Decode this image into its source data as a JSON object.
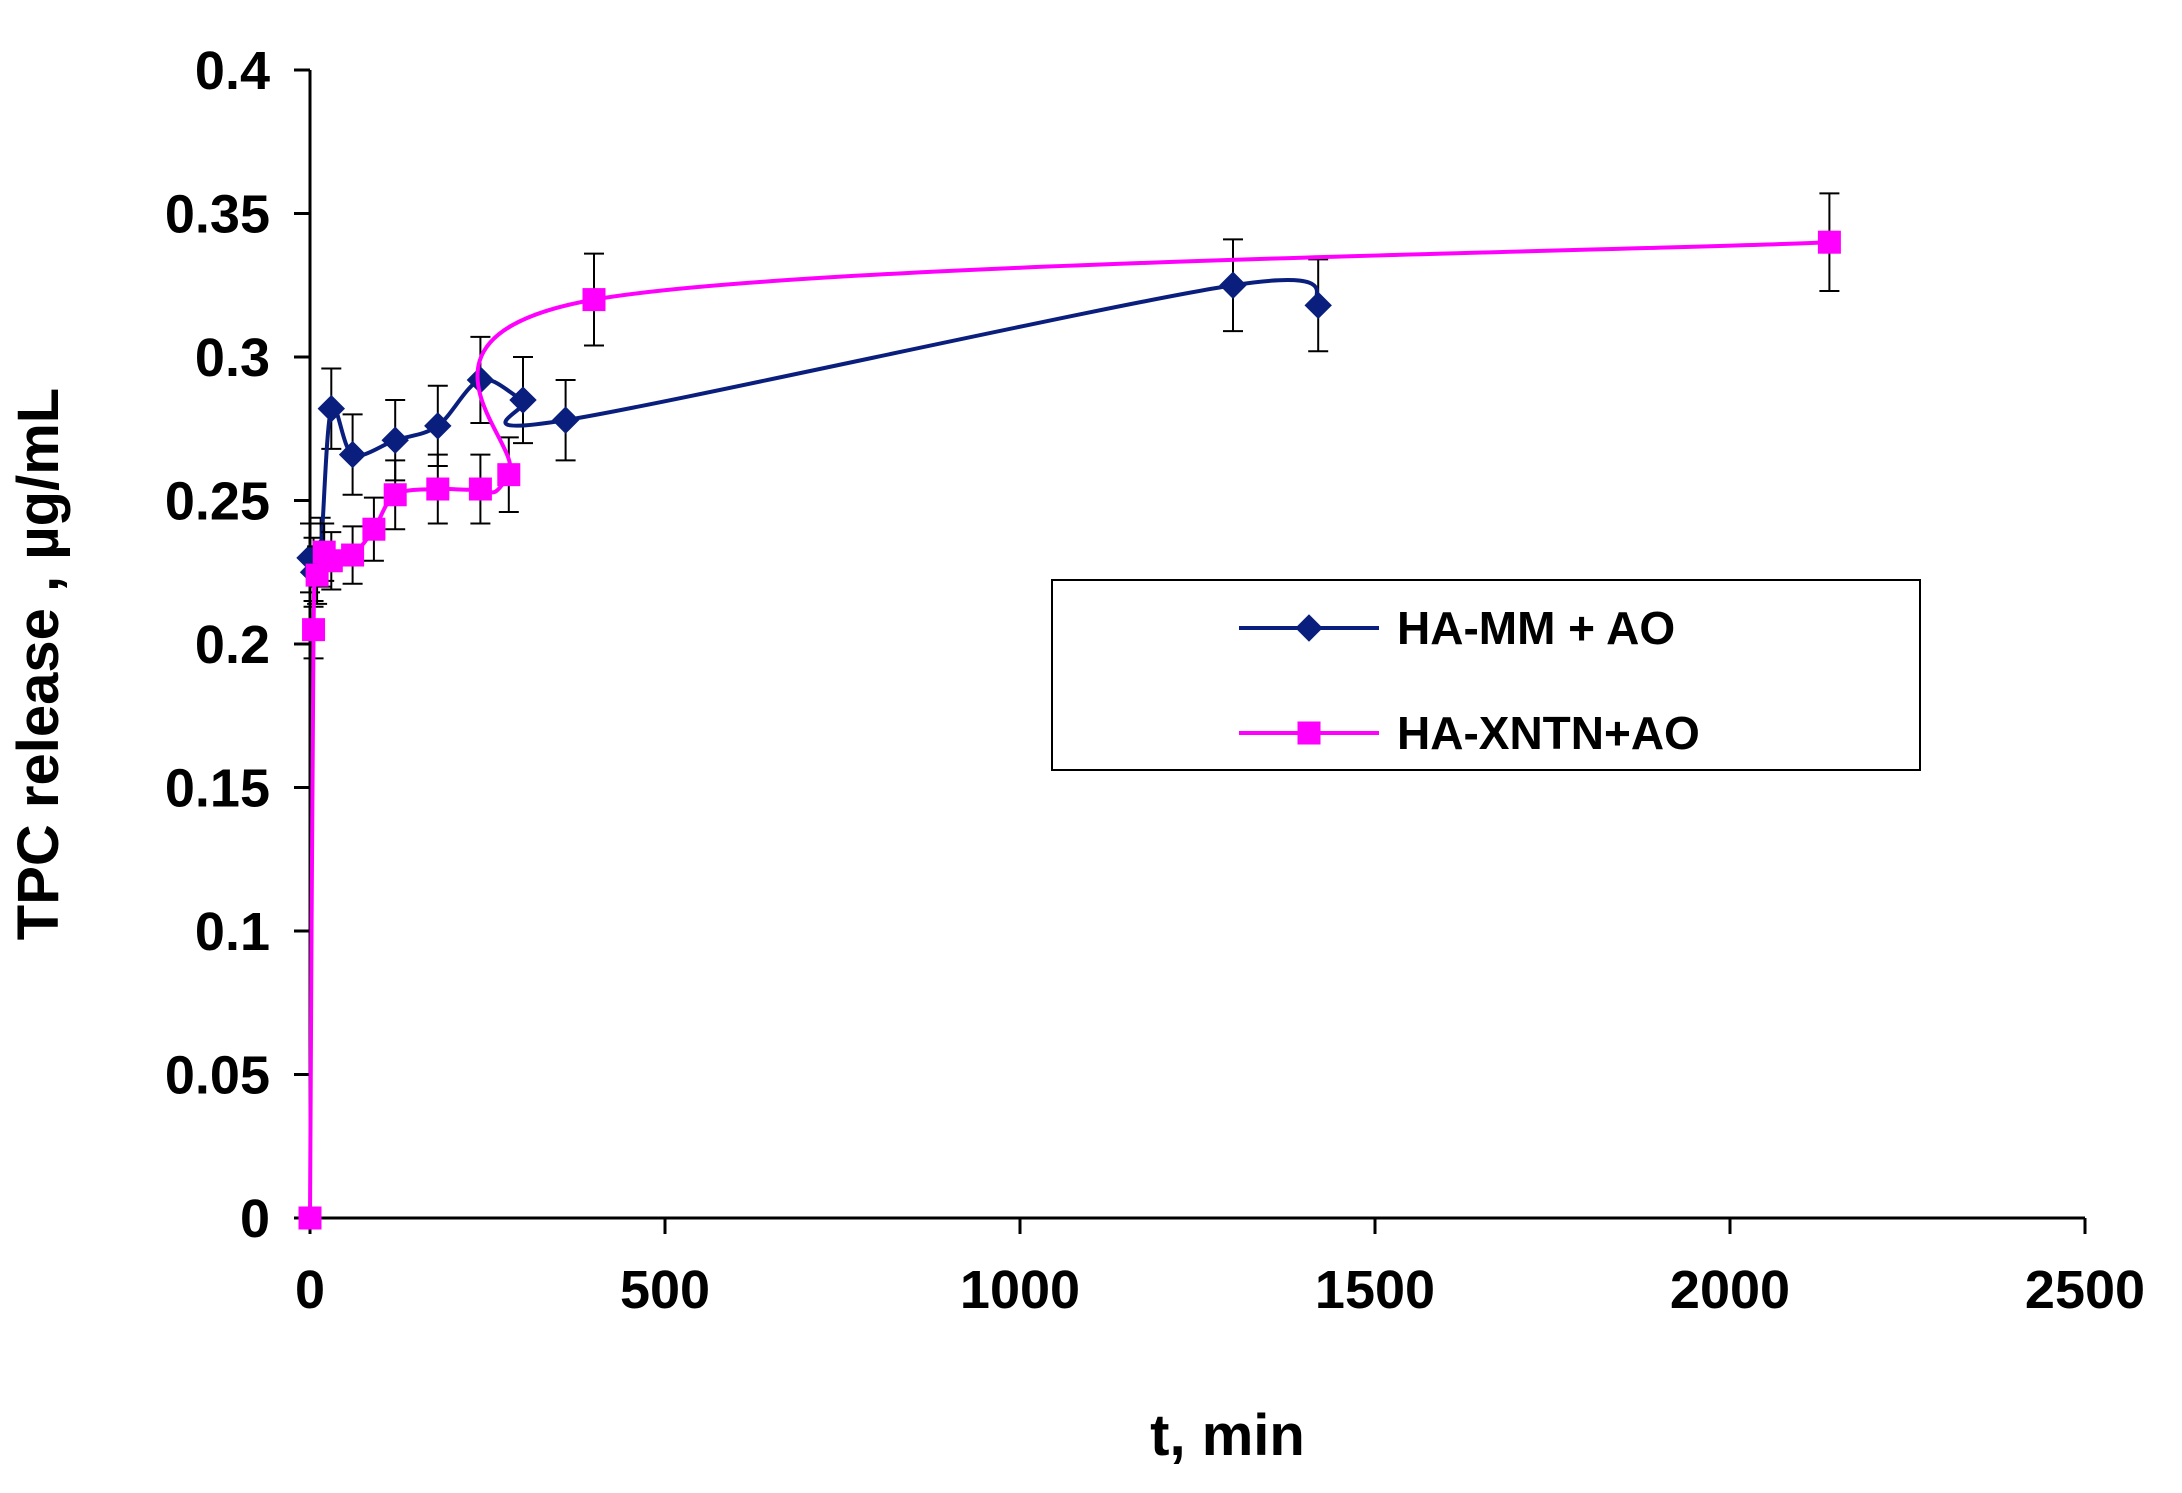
{
  "chart_data": {
    "type": "line",
    "title": "",
    "xlabel": "t, min",
    "ylabel": "TPC release , µg/mL",
    "xlim": [
      0,
      2500
    ],
    "ylim": [
      0,
      0.4
    ],
    "x_ticks": [
      0,
      500,
      1000,
      1500,
      2000,
      2500
    ],
    "y_ticks": [
      0,
      0.05,
      0.1,
      0.15,
      0.2,
      0.25,
      0.3,
      0.35,
      0.4
    ],
    "x_tick_labels": [
      "0",
      "500",
      "1000",
      "1500",
      "2000",
      "2500"
    ],
    "y_tick_labels": [
      "0",
      "0.05",
      "0.1",
      "0.15",
      "0.2",
      "0.25",
      "0.3",
      "0.35",
      "0.4"
    ],
    "grid": false,
    "legend_position": "center-right",
    "series": [
      {
        "name": "HA-MM + AO",
        "color": "#0a1f7d",
        "marker": "diamond",
        "x": [
          0,
          5,
          15,
          30,
          60,
          120,
          180,
          240,
          300,
          360,
          1300,
          1420
        ],
        "y": [
          0.23,
          0.225,
          0.232,
          0.282,
          0.266,
          0.271,
          0.276,
          0.292,
          0.285,
          0.278,
          0.325,
          0.318
        ],
        "error": [
          0.012,
          0.012,
          0.012,
          0.014,
          0.014,
          0.014,
          0.014,
          0.015,
          0.015,
          0.014,
          0.016,
          0.016
        ]
      },
      {
        "name": "HA-XNTN+AO",
        "color": "#ff00ff",
        "marker": "square",
        "x": [
          0,
          5,
          10,
          20,
          30,
          60,
          90,
          120,
          180,
          240,
          280,
          400,
          2140
        ],
        "y": [
          0.0,
          0.205,
          0.224,
          0.232,
          0.229,
          0.231,
          0.24,
          0.252,
          0.254,
          0.254,
          0.259,
          0.32,
          0.34
        ],
        "error": [
          0,
          0.01,
          0.01,
          0.01,
          0.01,
          0.01,
          0.011,
          0.012,
          0.012,
          0.012,
          0.013,
          0.016,
          0.017
        ]
      }
    ]
  }
}
